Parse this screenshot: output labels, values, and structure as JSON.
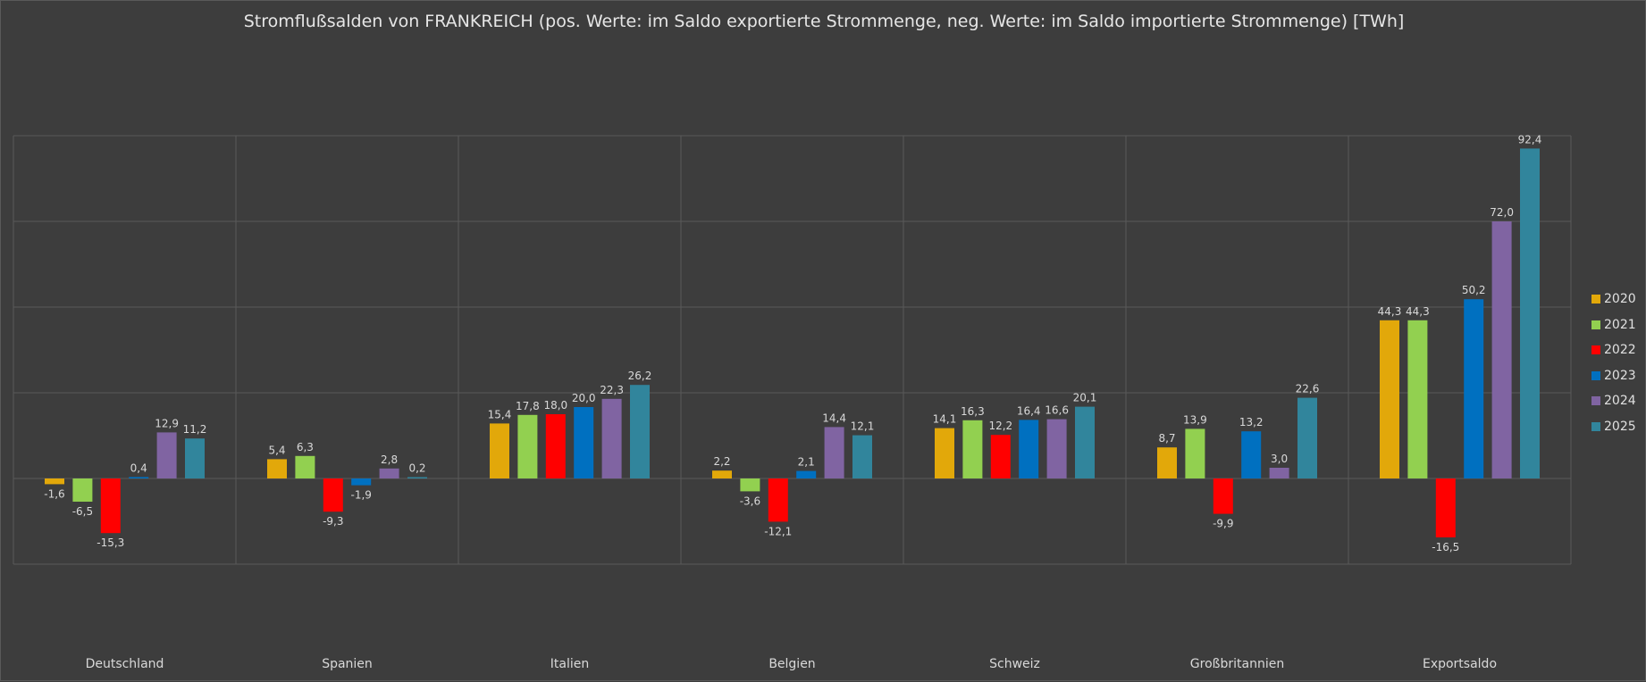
{
  "chart_data": {
    "type": "bar",
    "title": "Stromflußsalden von FRANKREICH (pos. Werte: im Saldo exportierte Strommenge, neg. Werte: im Saldo importierte Strommenge) [TWh]",
    "xlabel": "",
    "ylabel": "",
    "ylim": [
      -40,
      100
    ],
    "grid": true,
    "legend_position": "right",
    "categories": [
      "Deutschland",
      "Spanien",
      "Italien",
      "Belgien",
      "Schweiz",
      "Großbritannien",
      "Exportsaldo"
    ],
    "series": [
      {
        "name": "2020",
        "color": "#e2a80a",
        "values": [
          -1.6,
          5.4,
          15.4,
          2.2,
          14.1,
          8.7,
          44.3
        ],
        "labels": [
          "-1,6",
          "5,4",
          "15,4",
          "2,2",
          "14,1",
          "8,7",
          "44,3"
        ]
      },
      {
        "name": "2021",
        "color": "#92d050",
        "values": [
          -6.5,
          6.3,
          17.8,
          -3.6,
          16.3,
          13.9,
          44.3
        ],
        "labels": [
          "-6,5",
          "6,3",
          "17,8",
          "-3,6",
          "16,3",
          "13,9",
          "44,3"
        ]
      },
      {
        "name": "2022",
        "color": "#ff0000",
        "values": [
          -15.3,
          -9.3,
          18.0,
          -12.1,
          12.2,
          -9.9,
          -16.5
        ],
        "labels": [
          "-15,3",
          "-9,3",
          "18,0",
          "-12,1",
          "12,2",
          "-9,9",
          "-16,5"
        ]
      },
      {
        "name": "2023",
        "color": "#0070c0",
        "values": [
          0.4,
          -1.9,
          20.0,
          2.1,
          16.4,
          13.2,
          50.2
        ],
        "labels": [
          "0,4",
          "-1,9",
          "20,0",
          "2,1",
          "16,4",
          "13,2",
          "50,2"
        ]
      },
      {
        "name": "2024",
        "color": "#8064a2",
        "values": [
          12.9,
          2.8,
          22.3,
          14.4,
          16.6,
          3.0,
          72.0
        ],
        "labels": [
          "12,9",
          "2,8",
          "22,3",
          "14,4",
          "16,6",
          "3,0",
          "72,0"
        ]
      },
      {
        "name": "2025",
        "color": "#31859c",
        "values": [
          11.2,
          0.2,
          26.2,
          12.1,
          20.1,
          22.6,
          92.4
        ],
        "labels": [
          "11,2",
          "0,2",
          "26,2",
          "12,1",
          "20,1",
          "22,6",
          "92,4"
        ]
      }
    ]
  }
}
